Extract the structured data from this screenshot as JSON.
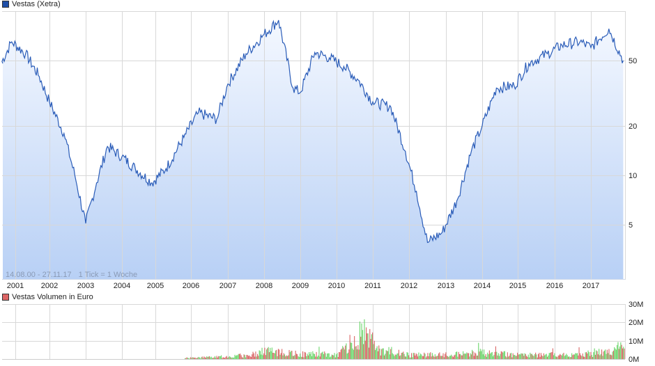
{
  "price_chart": {
    "legend_label": "Vestas (Xetra)",
    "legend_color": "#1f4fa8",
    "range_text": "14.08.00 - 27.11.17",
    "tick_text": "1 Tick = 1 Woche",
    "y_ticks": [
      "50",
      "20",
      "10",
      "5"
    ],
    "x_ticks": [
      "2001",
      "2002",
      "2003",
      "2004",
      "2005",
      "2006",
      "2007",
      "2008",
      "2009",
      "2010",
      "2011",
      "2012",
      "2013",
      "2014",
      "2015",
      "2016",
      "2017"
    ]
  },
  "volume_chart": {
    "legend_label": "Vestas Volumen in Euro",
    "legend_color": "#d66",
    "y_ticks": [
      "30M",
      "20M",
      "10M",
      "0M"
    ]
  },
  "chart_data": [
    {
      "type": "area",
      "title": "Vestas (Xetra)",
      "subtitle": "14.08.00 - 27.11.17, 1 Tick = 1 Woche",
      "xlabel": "",
      "ylabel": "",
      "y_scale": "log",
      "ylim": [
        2.5,
        100
      ],
      "y_ticks": [
        5,
        10,
        20,
        50
      ],
      "x": [
        2000.6,
        2000.9,
        2001.3,
        2001.7,
        2002.0,
        2002.4,
        2002.7,
        2003.0,
        2003.3,
        2003.6,
        2004.0,
        2004.4,
        2004.9,
        2005.3,
        2005.8,
        2006.2,
        2006.7,
        2007.0,
        2007.5,
        2008.0,
        2008.4,
        2008.8,
        2009.0,
        2009.4,
        2009.8,
        2010.2,
        2010.6,
        2011.0,
        2011.5,
        2011.9,
        2012.2,
        2012.5,
        2012.9,
        2013.3,
        2013.7,
        2014.0,
        2014.4,
        2014.9,
        2015.3,
        2015.8,
        2016.2,
        2016.7,
        2017.0,
        2017.5,
        2017.9
      ],
      "values": [
        48,
        65,
        55,
        40,
        28,
        18,
        10,
        5.1,
        9,
        15,
        13,
        11,
        9,
        11,
        17,
        24,
        22,
        36,
        55,
        72,
        88,
        34,
        32,
        56,
        52,
        46,
        38,
        28,
        26,
        14,
        8,
        3.9,
        4.5,
        7,
        14,
        20,
        34,
        35,
        48,
        55,
        62,
        65,
        60,
        78,
        50
      ],
      "grid": true
    },
    {
      "type": "bar",
      "title": "Vestas Volumen in Euro",
      "ylabel": "",
      "ylim": [
        0,
        30000000
      ],
      "y_ticks": [
        "0M",
        "10M",
        "20M",
        "30M"
      ],
      "note": "weekly volume bars colored green (up) / red (down); peak ~22M in late 2010",
      "x": [
        2001,
        2003,
        2005,
        2006.5,
        2007.5,
        2008,
        2008.3,
        2009,
        2010,
        2010.3,
        2010.8,
        2011,
        2012,
        2013,
        2014,
        2015,
        2016,
        2017,
        2017.9
      ],
      "values": [
        0,
        0,
        200000,
        1500000,
        3000000,
        7000000,
        5000000,
        4000000,
        3500000,
        13000000,
        22000000,
        8000000,
        3000000,
        3500000,
        5000000,
        3000000,
        3500000,
        3500000,
        9000000
      ]
    }
  ]
}
